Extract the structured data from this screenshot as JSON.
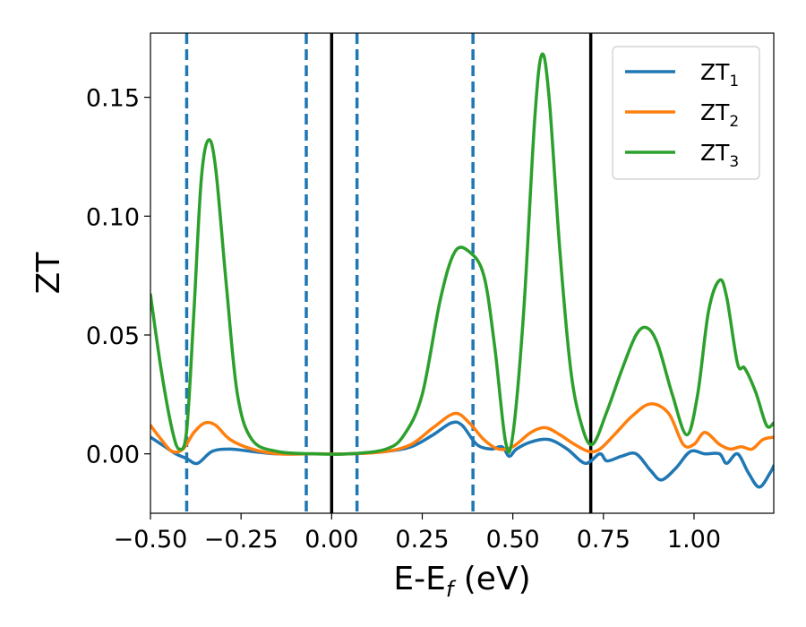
{
  "chart_data": {
    "type": "line",
    "title": "",
    "xlabel": "E-E",
    "xlabel_subscript": "f",
    "xlabel_unit": " (eV)",
    "ylabel": "ZT",
    "xlim": [
      -0.5,
      1.22
    ],
    "ylim": [
      -0.025,
      0.177
    ],
    "grid": false,
    "legend_position": "top-right",
    "x_ticks": [
      -0.5,
      -0.25,
      0.0,
      0.25,
      0.5,
      0.75,
      1.0
    ],
    "x_tick_labels": [
      "−0.50",
      "−0.25",
      "0.00",
      "0.25",
      "0.50",
      "0.75",
      "1.00"
    ],
    "y_ticks": [
      0.0,
      0.05,
      0.1,
      0.15
    ],
    "y_tick_labels": [
      "0.00",
      "0.05",
      "0.10",
      "0.15"
    ],
    "vertical_lines": [
      {
        "x": -0.4,
        "style": "dashed",
        "color": "#1f77b4"
      },
      {
        "x": -0.07,
        "style": "dashed",
        "color": "#1f77b4"
      },
      {
        "x": 0.0,
        "style": "solid",
        "color": "#000000"
      },
      {
        "x": 0.07,
        "style": "dashed",
        "color": "#1f77b4"
      },
      {
        "x": 0.39,
        "style": "dashed",
        "color": "#1f77b4"
      },
      {
        "x": 0.715,
        "style": "solid",
        "color": "#000000"
      }
    ],
    "series": [
      {
        "name": "ZT",
        "subscript": "1",
        "color": "#1f77b4",
        "points": [
          [
            -0.5,
            0.007
          ],
          [
            -0.46,
            0.003
          ],
          [
            -0.43,
            0.0
          ],
          [
            -0.4,
            -0.002
          ],
          [
            -0.37,
            -0.004
          ],
          [
            -0.33,
            0.001
          ],
          [
            -0.28,
            0.002
          ],
          [
            -0.22,
            0.001
          ],
          [
            -0.15,
            0.0
          ],
          [
            -0.05,
            0.0
          ],
          [
            0.05,
            0.0
          ],
          [
            0.15,
            0.001
          ],
          [
            0.22,
            0.003
          ],
          [
            0.28,
            0.008
          ],
          [
            0.33,
            0.013
          ],
          [
            0.36,
            0.012
          ],
          [
            0.4,
            0.004
          ],
          [
            0.44,
            0.002
          ],
          [
            0.47,
            0.003
          ],
          [
            0.49,
            -0.001
          ],
          [
            0.51,
            0.002
          ],
          [
            0.55,
            0.005
          ],
          [
            0.6,
            0.006
          ],
          [
            0.65,
            0.002
          ],
          [
            0.7,
            -0.004
          ],
          [
            0.74,
            0.0
          ],
          [
            0.76,
            -0.003
          ],
          [
            0.8,
            -0.001
          ],
          [
            0.84,
            0.0
          ],
          [
            0.88,
            -0.007
          ],
          [
            0.91,
            -0.011
          ],
          [
            0.95,
            -0.006
          ],
          [
            0.99,
            0.001
          ],
          [
            1.03,
            0.0
          ],
          [
            1.07,
            0.0
          ],
          [
            1.09,
            -0.004
          ],
          [
            1.12,
            0.0
          ],
          [
            1.15,
            -0.008
          ],
          [
            1.18,
            -0.014
          ],
          [
            1.21,
            -0.008
          ],
          [
            1.22,
            -0.005
          ]
        ]
      },
      {
        "name": "ZT",
        "subscript": "2",
        "color": "#ff7f0e",
        "points": [
          [
            -0.5,
            0.012
          ],
          [
            -0.47,
            0.006
          ],
          [
            -0.44,
            0.001
          ],
          [
            -0.41,
            0.002
          ],
          [
            -0.38,
            0.009
          ],
          [
            -0.35,
            0.013
          ],
          [
            -0.32,
            0.012
          ],
          [
            -0.28,
            0.006
          ],
          [
            -0.22,
            0.002
          ],
          [
            -0.15,
            0.0
          ],
          [
            -0.05,
            0.0
          ],
          [
            0.05,
            0.0
          ],
          [
            0.15,
            0.001
          ],
          [
            0.22,
            0.004
          ],
          [
            0.28,
            0.011
          ],
          [
            0.34,
            0.017
          ],
          [
            0.38,
            0.013
          ],
          [
            0.42,
            0.006
          ],
          [
            0.46,
            0.002
          ],
          [
            0.5,
            0.003
          ],
          [
            0.55,
            0.009
          ],
          [
            0.59,
            0.011
          ],
          [
            0.63,
            0.008
          ],
          [
            0.67,
            0.004
          ],
          [
            0.71,
            0.001
          ],
          [
            0.74,
            0.002
          ],
          [
            0.78,
            0.008
          ],
          [
            0.83,
            0.016
          ],
          [
            0.88,
            0.021
          ],
          [
            0.93,
            0.017
          ],
          [
            0.97,
            0.004
          ],
          [
            1.0,
            0.004
          ],
          [
            1.03,
            0.009
          ],
          [
            1.07,
            0.004
          ],
          [
            1.1,
            0.002
          ],
          [
            1.13,
            0.003
          ],
          [
            1.16,
            0.002
          ],
          [
            1.19,
            0.006
          ],
          [
            1.22,
            0.007
          ]
        ]
      },
      {
        "name": "ZT",
        "subscript": "3",
        "color": "#2ca02c",
        "points": [
          [
            -0.5,
            0.067
          ],
          [
            -0.47,
            0.035
          ],
          [
            -0.44,
            0.01
          ],
          [
            -0.42,
            0.002
          ],
          [
            -0.4,
            0.01
          ],
          [
            -0.38,
            0.06
          ],
          [
            -0.36,
            0.115
          ],
          [
            -0.34,
            0.132
          ],
          [
            -0.32,
            0.12
          ],
          [
            -0.29,
            0.07
          ],
          [
            -0.26,
            0.025
          ],
          [
            -0.22,
            0.006
          ],
          [
            -0.15,
            0.001
          ],
          [
            -0.05,
            0.0
          ],
          [
            0.05,
            0.0
          ],
          [
            0.15,
            0.002
          ],
          [
            0.2,
            0.008
          ],
          [
            0.25,
            0.025
          ],
          [
            0.3,
            0.065
          ],
          [
            0.34,
            0.085
          ],
          [
            0.38,
            0.085
          ],
          [
            0.42,
            0.075
          ],
          [
            0.45,
            0.045
          ],
          [
            0.48,
            0.005
          ],
          [
            0.5,
            0.008
          ],
          [
            0.53,
            0.06
          ],
          [
            0.56,
            0.14
          ],
          [
            0.58,
            0.168
          ],
          [
            0.6,
            0.15
          ],
          [
            0.63,
            0.085
          ],
          [
            0.66,
            0.035
          ],
          [
            0.69,
            0.012
          ],
          [
            0.72,
            0.004
          ],
          [
            0.76,
            0.018
          ],
          [
            0.8,
            0.035
          ],
          [
            0.84,
            0.05
          ],
          [
            0.87,
            0.053
          ],
          [
            0.9,
            0.046
          ],
          [
            0.94,
            0.025
          ],
          [
            0.98,
            0.008
          ],
          [
            1.01,
            0.025
          ],
          [
            1.04,
            0.06
          ],
          [
            1.07,
            0.073
          ],
          [
            1.09,
            0.066
          ],
          [
            1.12,
            0.038
          ],
          [
            1.14,
            0.036
          ],
          [
            1.17,
            0.026
          ],
          [
            1.2,
            0.012
          ],
          [
            1.22,
            0.013
          ]
        ]
      }
    ]
  }
}
